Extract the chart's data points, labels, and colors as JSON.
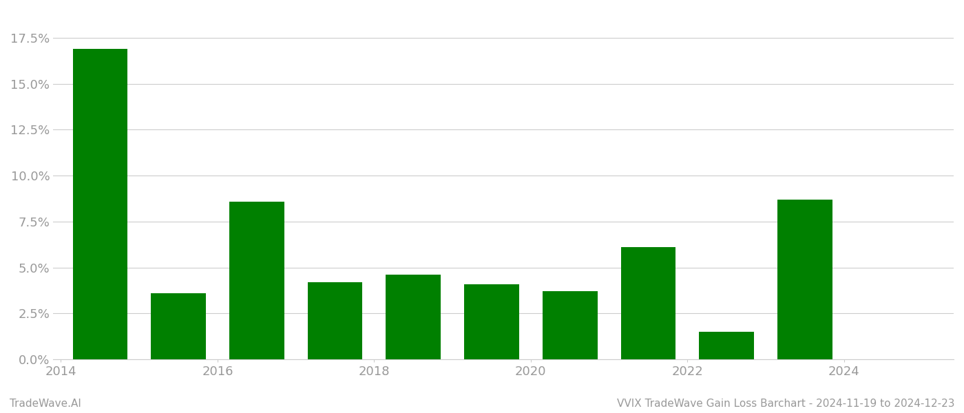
{
  "years": [
    2014,
    2015,
    2016,
    2017,
    2018,
    2019,
    2020,
    2021,
    2022,
    2023,
    2024
  ],
  "values": [
    0.169,
    0.036,
    0.086,
    0.042,
    0.046,
    0.041,
    0.037,
    0.061,
    0.015,
    0.087,
    0.0
  ],
  "bar_color": "#008000",
  "background_color": "#ffffff",
  "grid_color": "#cccccc",
  "axis_label_color": "#999999",
  "ylabel_ticks": [
    0.0,
    0.025,
    0.05,
    0.075,
    0.1,
    0.125,
    0.15,
    0.175
  ],
  "ylim": [
    0,
    0.19
  ],
  "footer_left": "TradeWave.AI",
  "footer_right": "VVIX TradeWave Gain Loss Barchart - 2024-11-19 to 2024-12-23",
  "footer_color": "#999999",
  "footer_fontsize": 11,
  "bar_width": 0.7,
  "tick_years": [
    2014,
    2016,
    2018,
    2020,
    2022,
    2024
  ]
}
